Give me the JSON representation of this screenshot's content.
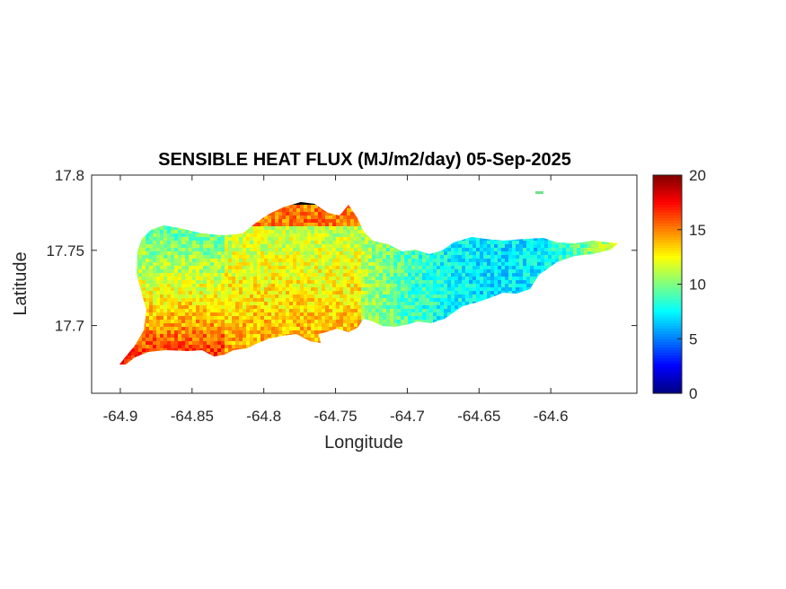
{
  "chart_data": {
    "type": "heatmap",
    "title": "SENSIBLE HEAT FLUX (MJ/m2/day) 05-Sep-2025",
    "xlabel": "Longitude",
    "ylabel": "Latitude",
    "xlim": [
      -64.92,
      -64.54
    ],
    "ylim": [
      17.655,
      17.8
    ],
    "x_ticks": [
      -64.9,
      -64.85,
      -64.8,
      -64.75,
      -64.7,
      -64.65,
      -64.6
    ],
    "x_tick_labels": [
      "-64.9",
      "-64.85",
      "-64.8",
      "-64.75",
      "-64.7",
      "-64.65",
      "-64.6"
    ],
    "y_ticks": [
      17.7,
      17.75,
      17.8
    ],
    "y_tick_labels": [
      "17.7",
      "17.75",
      "17.8"
    ],
    "colorbar": {
      "colormap": "jet",
      "range": [
        0,
        20
      ],
      "ticks": [
        0,
        5,
        10,
        15,
        20
      ],
      "tick_labels": [
        "0",
        "5",
        "10",
        "15",
        "20"
      ]
    },
    "grid": false,
    "field_summary": {
      "southwest_coast": 18,
      "south_central_coast": 15,
      "north_west_interior": 9,
      "central_interior": 11,
      "east_central": 7,
      "eastern_tip": 12
    }
  }
}
